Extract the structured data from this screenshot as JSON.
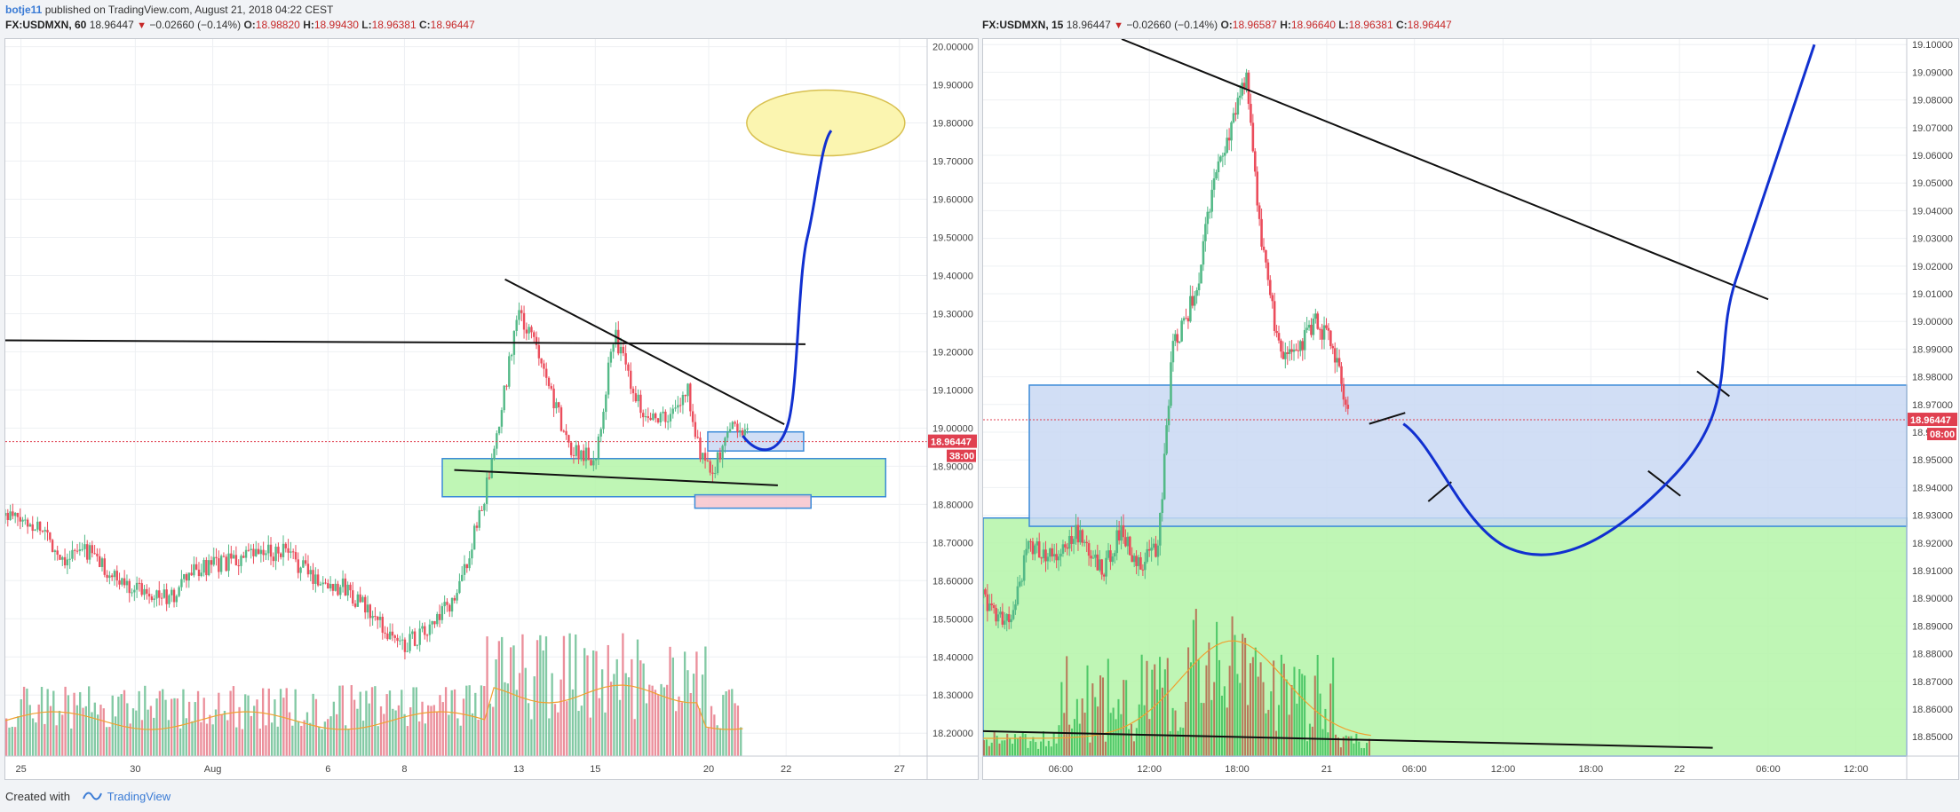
{
  "publish": {
    "author": "botje11",
    "text": " published on TradingView.com, August 21, 2018 04:22 CEST"
  },
  "footer": {
    "created_with": "Created with",
    "brand": "TradingView"
  },
  "chart_data": [
    {
      "type": "candlestick",
      "header": {
        "symbol": "FX:USDMXN, 60",
        "last": "18.96447",
        "change": "−0.02660 (−0.14%)",
        "o_label": "O:",
        "o": "18.98820",
        "h_label": "H:",
        "h": "18.99430",
        "l_label": "L:",
        "l": "18.96381",
        "c_label": "C:",
        "c": "18.96447"
      },
      "ylim": [
        18.14,
        20.02
      ],
      "y_ticks": [
        "20.00000",
        "19.90000",
        "19.80000",
        "19.70000",
        "19.60000",
        "19.50000",
        "19.40000",
        "19.30000",
        "19.20000",
        "19.10000",
        "19.00000",
        "18.90000",
        "18.80000",
        "18.70000",
        "18.60000",
        "18.50000",
        "18.40000",
        "18.30000",
        "18.20000"
      ],
      "y_tick_values": [
        20.0,
        19.9,
        19.8,
        19.7,
        19.6,
        19.5,
        19.4,
        19.3,
        19.2,
        19.1,
        19.0,
        18.9,
        18.8,
        18.7,
        18.6,
        18.5,
        18.4,
        18.3,
        18.2
      ],
      "x_ticks": [
        "25",
        "30",
        "Aug",
        "6",
        "8",
        "13",
        "15",
        "20",
        "22",
        "27"
      ],
      "x_tick_positions": [
        0.017,
        0.141,
        0.225,
        0.35,
        0.433,
        0.557,
        0.64,
        0.763,
        0.847,
        0.97
      ],
      "price_label": "18.96447",
      "countdown_label": "38:00",
      "last_price": 18.96447,
      "volume_colors": {
        "up": "#6cbf94",
        "down": "#e87b8a"
      },
      "zones": [
        {
          "name": "support-zone",
          "color": "#b4f5a8",
          "border": "#3a8ad8",
          "y1": 18.82,
          "y2": 18.92,
          "x1": 0.474,
          "x2": 0.955
        },
        {
          "name": "blue-zone",
          "color": "#c9d8f3",
          "border": "#3a8ad8",
          "y1": 18.94,
          "y2": 18.99,
          "x1": 0.762,
          "x2": 0.866
        },
        {
          "name": "red-zone",
          "color": "#f7c4cc",
          "border": "#3a8ad8",
          "y1": 18.79,
          "y2": 18.825,
          "x1": 0.748,
          "x2": 0.874
        }
      ],
      "target": {
        "color": "#fbf5b0",
        "border": "#d8c050",
        "x": 0.89,
        "y": 19.8
      }
    },
    {
      "type": "candlestick",
      "header": {
        "symbol": "FX:USDMXN, 15",
        "last": "18.96447",
        "change": "−0.02660 (−0.14%)",
        "o_label": "O:",
        "o": "18.96587",
        "h_label": "H:",
        "h": "18.96640",
        "l_label": "L:",
        "l": "18.96381",
        "c_label": "C:",
        "c": "18.96447"
      },
      "ylim": [
        18.843,
        19.102
      ],
      "y_ticks": [
        "19.10000",
        "19.09000",
        "19.08000",
        "19.07000",
        "19.06000",
        "19.05000",
        "19.04000",
        "19.03000",
        "19.02000",
        "19.01000",
        "19.00000",
        "18.99000",
        "18.98000",
        "18.97000",
        "18.96000",
        "18.95000",
        "18.94000",
        "18.93000",
        "18.92000",
        "18.91000",
        "18.90000",
        "18.89000",
        "18.88000",
        "18.87000",
        "18.86000",
        "18.85000"
      ],
      "y_tick_values": [
        19.1,
        19.09,
        19.08,
        19.07,
        19.06,
        19.05,
        19.04,
        19.03,
        19.02,
        19.01,
        19.0,
        18.99,
        18.98,
        18.97,
        18.96,
        18.95,
        18.94,
        18.93,
        18.92,
        18.91,
        18.9,
        18.89,
        18.88,
        18.87,
        18.86,
        18.85
      ],
      "x_ticks": [
        "06:00",
        "12:00",
        "18:00",
        "21",
        "06:00",
        "12:00",
        "18:00",
        "22",
        "06:00",
        "12:00"
      ],
      "x_tick_positions": [
        0.084,
        0.18,
        0.275,
        0.372,
        0.467,
        0.563,
        0.658,
        0.754,
        0.85,
        0.945
      ],
      "price_label": "18.96447",
      "countdown_label": "08:00",
      "last_price": 18.96447,
      "volume_colors": {
        "up": "#3bbf5a",
        "down": "#b5634a"
      },
      "zones": [
        {
          "name": "support-zone",
          "color": "#b4f5a8",
          "border": "#3a8ad8",
          "y1": 18.843,
          "y2": 18.929,
          "x1": 0.0,
          "x2": 1.0
        },
        {
          "name": "blue-zone",
          "color": "#c9d8f3",
          "border": "#3a8ad8",
          "y1": 18.926,
          "y2": 18.977,
          "x1": 0.05,
          "x2": 1.0
        }
      ]
    }
  ]
}
